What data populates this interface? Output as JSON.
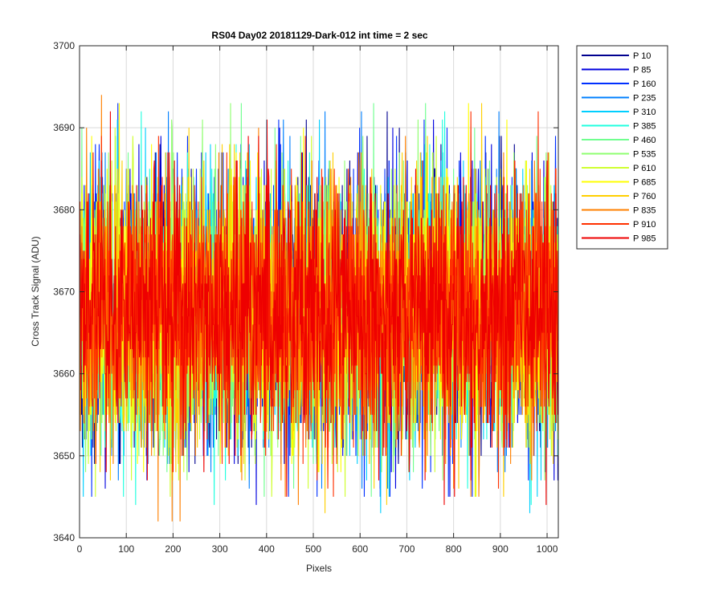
{
  "chart_data": {
    "type": "line",
    "title": "RS04 Day02 20181129-Dark-012 int time = 2 sec",
    "xlabel": "Pixels",
    "ylabel": "Cross Track Signal (ADU)",
    "xlim": [
      0,
      1024
    ],
    "ylim": [
      3640,
      3700
    ],
    "xticks": [
      0,
      100,
      200,
      300,
      400,
      500,
      600,
      700,
      800,
      900,
      1000
    ],
    "yticks": [
      3640,
      3650,
      3660,
      3670,
      3680,
      3690,
      3700
    ],
    "grid": true,
    "legend_position": "outside-right",
    "series": [
      {
        "name": "P 10",
        "color": "#00008f",
        "mean": 3667.6,
        "std": 8.0,
        "min": 3649,
        "max": 3694
      },
      {
        "name": "P 85",
        "color": "#0000df",
        "mean": 3667.8,
        "std": 8.0,
        "min": 3644,
        "max": 3695
      },
      {
        "name": "P 160",
        "color": "#0030ff",
        "mean": 3667.5,
        "std": 8.0,
        "min": 3645,
        "max": 3693
      },
      {
        "name": "P 235",
        "color": "#0080ff",
        "mean": 3667.6,
        "std": 8.0,
        "min": 3646,
        "max": 3692
      },
      {
        "name": "P 310",
        "color": "#00cfff",
        "mean": 3667.4,
        "std": 8.0,
        "min": 3643,
        "max": 3691
      },
      {
        "name": "P 385",
        "color": "#20ffdf",
        "mean": 3667.6,
        "std": 8.0,
        "min": 3644,
        "max": 3692
      },
      {
        "name": "P 460",
        "color": "#70ff8f",
        "mean": 3667.7,
        "std": 8.0,
        "min": 3645,
        "max": 3693
      },
      {
        "name": "P 535",
        "color": "#8fff70",
        "mean": 3667.5,
        "std": 8.0,
        "min": 3644,
        "max": 3696
      },
      {
        "name": "P 610",
        "color": "#cfff30",
        "mean": 3667.6,
        "std": 8.0,
        "min": 3645,
        "max": 3694
      },
      {
        "name": "P 685",
        "color": "#ffff00",
        "mean": 3667.6,
        "std": 8.0,
        "min": 3645,
        "max": 3693
      },
      {
        "name": "P 760",
        "color": "#ffcf00",
        "mean": 3667.5,
        "std": 8.0,
        "min": 3643,
        "max": 3693
      },
      {
        "name": "P 835",
        "color": "#ff8000",
        "mean": 3667.6,
        "std": 8.0,
        "min": 3642,
        "max": 3694
      },
      {
        "name": "P 910",
        "color": "#ff3000",
        "mean": 3667.7,
        "std": 8.0,
        "min": 3641,
        "max": 3692
      },
      {
        "name": "P 985",
        "color": "#ee0000",
        "mean": 3667.6,
        "std": 8.0,
        "min": 3641,
        "max": 3696
      }
    ]
  }
}
